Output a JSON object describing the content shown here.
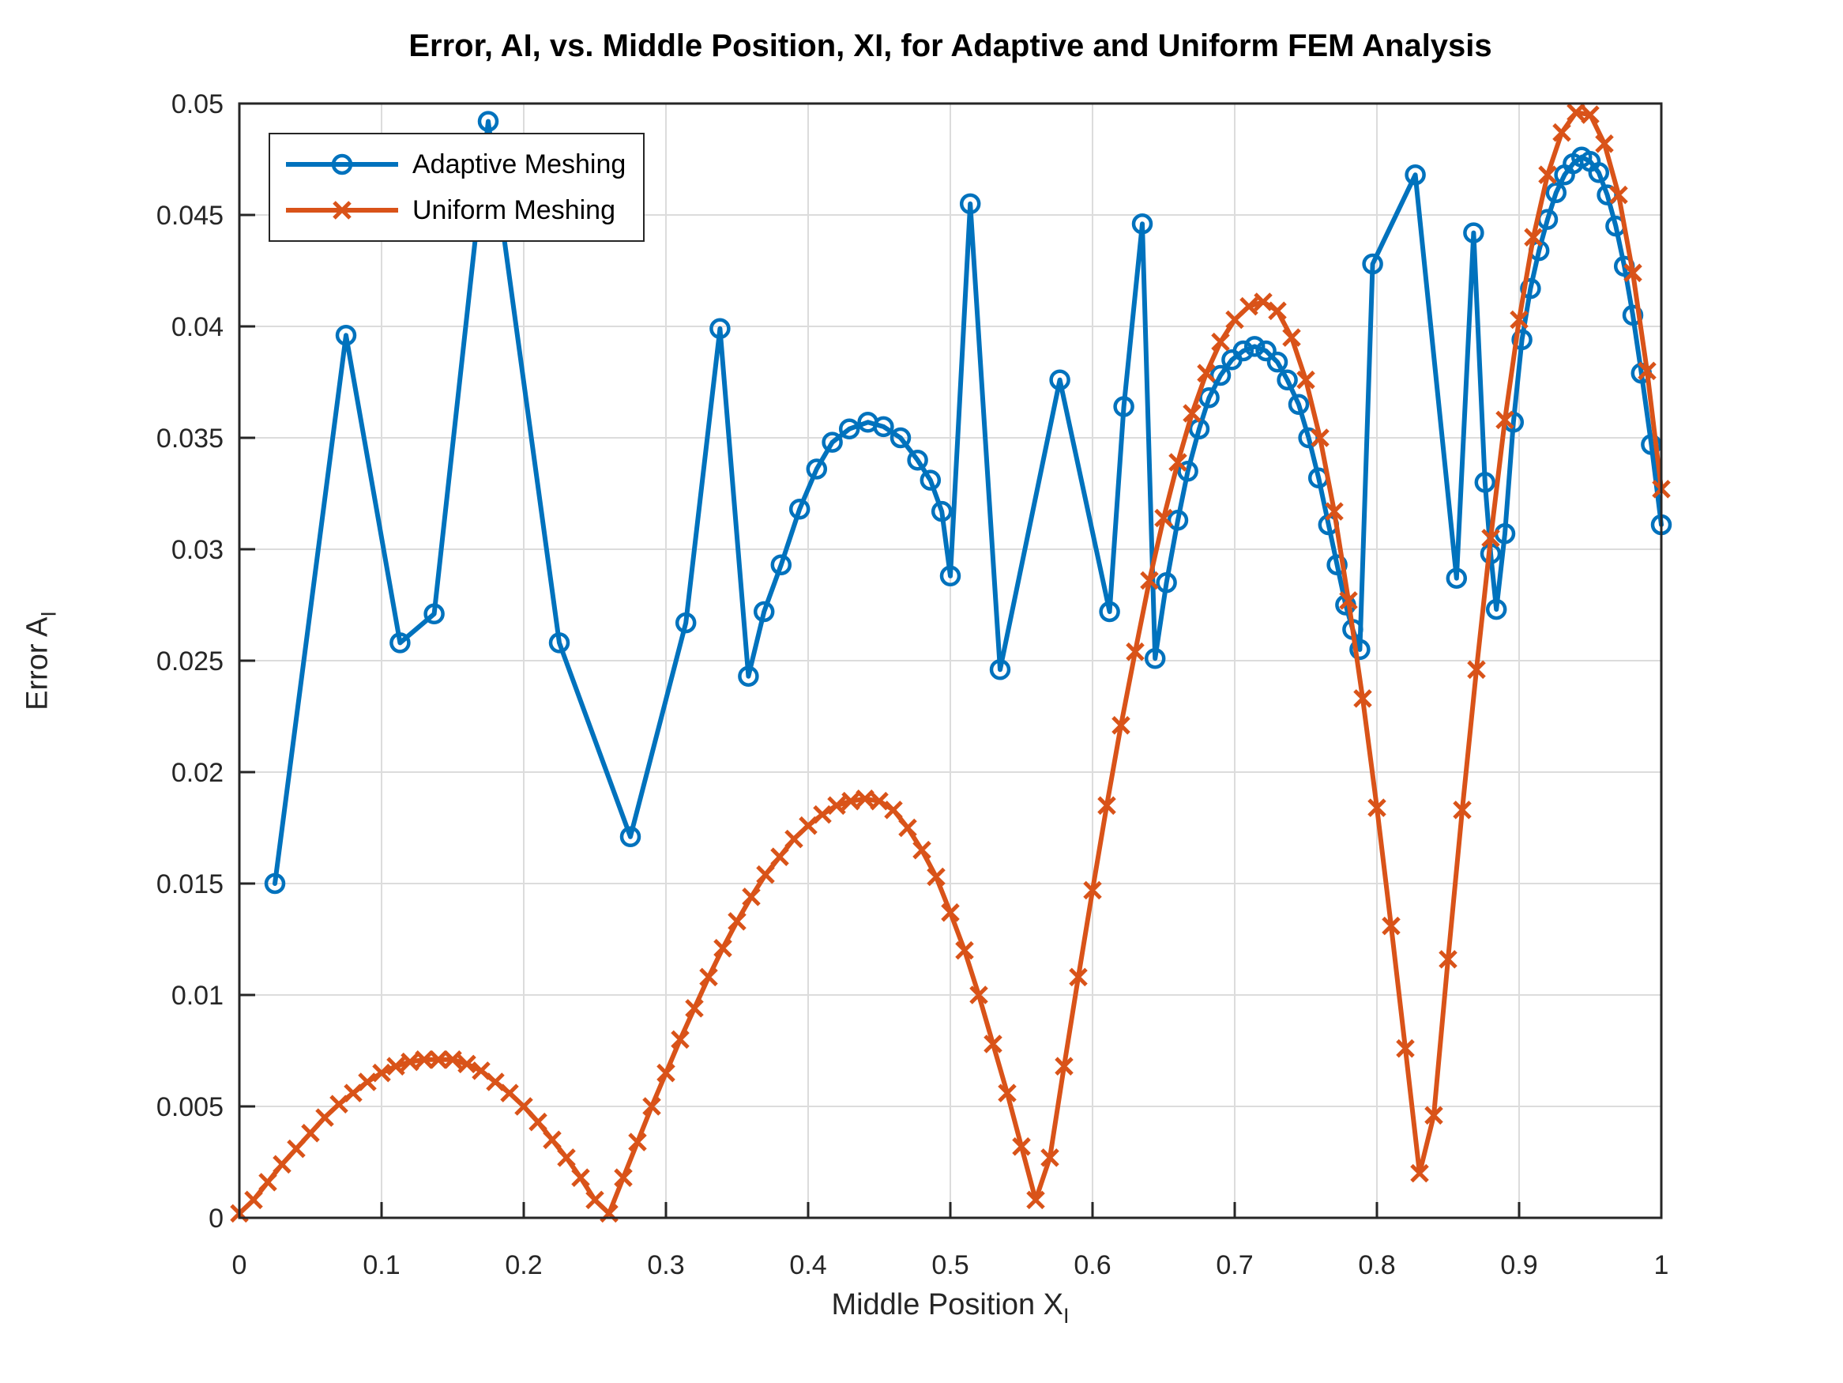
{
  "figure": {
    "title": "Error, AI, vs. Middle Position, XI, for Adaptive and Uniform FEM Analysis",
    "background": "#ffffff"
  },
  "axes": {
    "xlabel": {
      "text": "Middle Position X",
      "sub": "I"
    },
    "ylabel": {
      "text": "Error A",
      "sub": "I"
    },
    "xlim": [
      0,
      1
    ],
    "ylim": [
      0,
      0.05
    ],
    "x_ticks": [
      0,
      0.1,
      0.2,
      0.3,
      0.4,
      0.5,
      0.6,
      0.7,
      0.8,
      0.9,
      1
    ],
    "x_tick_labels": [
      "0",
      "0.1",
      "0.2",
      "0.3",
      "0.4",
      "0.5",
      "0.6",
      "0.7",
      "0.8",
      "0.9",
      "1"
    ],
    "y_ticks": [
      0,
      0.005,
      0.01,
      0.015,
      0.02,
      0.025,
      0.03,
      0.035,
      0.04,
      0.045,
      0.05
    ],
    "y_tick_labels": [
      "0",
      "0.005",
      "0.01",
      "0.015",
      "0.02",
      "0.025",
      "0.03",
      "0.035",
      "0.04",
      "0.045",
      "0.05"
    ],
    "grid": true,
    "box": true,
    "colors": {
      "grid": "#dcdcdc",
      "spine": "#262626",
      "tick_text": "#262626"
    }
  },
  "legend": {
    "position": "northwest",
    "items": [
      {
        "label": "Adaptive Meshing",
        "color": "#0072bd",
        "marker": "circle"
      },
      {
        "label": "Uniform Meshing",
        "color": "#d95319",
        "marker": "x"
      }
    ]
  },
  "chart_data": {
    "type": "line",
    "title": "Error, AI, vs. Middle Position, XI, for Adaptive and Uniform FEM Analysis",
    "xlabel": "Middle Position X_I",
    "ylabel": "Error A_I",
    "xlim": [
      0,
      1
    ],
    "ylim": [
      0,
      0.05
    ],
    "grid": true,
    "legend_position": "northwest",
    "series": [
      {
        "name": "Adaptive Meshing",
        "color": "#0072bd",
        "marker": "circle",
        "line_width": 6,
        "points": [
          [
            0.025,
            0.015
          ],
          [
            0.075,
            0.0396
          ],
          [
            0.113,
            0.0258
          ],
          [
            0.137,
            0.0271
          ],
          [
            0.175,
            0.0492
          ],
          [
            0.225,
            0.0258
          ],
          [
            0.275,
            0.0171
          ],
          [
            0.314,
            0.0267
          ],
          [
            0.338,
            0.0399
          ],
          [
            0.358,
            0.0243
          ],
          [
            0.369,
            0.0272
          ],
          [
            0.381,
            0.0293
          ],
          [
            0.394,
            0.0318
          ],
          [
            0.406,
            0.0336
          ],
          [
            0.417,
            0.0348
          ],
          [
            0.429,
            0.0354
          ],
          [
            0.442,
            0.0357
          ],
          [
            0.453,
            0.0355
          ],
          [
            0.465,
            0.035
          ],
          [
            0.477,
            0.034
          ],
          [
            0.486,
            0.0331
          ],
          [
            0.494,
            0.0317
          ],
          [
            0.5,
            0.0288
          ],
          [
            0.514,
            0.0455
          ],
          [
            0.535,
            0.0246
          ],
          [
            0.577,
            0.0376
          ],
          [
            0.612,
            0.0272
          ],
          [
            0.622,
            0.0364
          ],
          [
            0.635,
            0.0446
          ],
          [
            0.644,
            0.0251
          ],
          [
            0.652,
            0.0285
          ],
          [
            0.66,
            0.0313
          ],
          [
            0.667,
            0.0335
          ],
          [
            0.675,
            0.0354
          ],
          [
            0.682,
            0.0368
          ],
          [
            0.69,
            0.0378
          ],
          [
            0.698,
            0.0385
          ],
          [
            0.706,
            0.0389
          ],
          [
            0.714,
            0.0391
          ],
          [
            0.722,
            0.0389
          ],
          [
            0.73,
            0.0384
          ],
          [
            0.737,
            0.0376
          ],
          [
            0.745,
            0.0365
          ],
          [
            0.752,
            0.035
          ],
          [
            0.759,
            0.0332
          ],
          [
            0.766,
            0.0311
          ],
          [
            0.772,
            0.0293
          ],
          [
            0.778,
            0.0275
          ],
          [
            0.783,
            0.0264
          ],
          [
            0.788,
            0.0255
          ],
          [
            0.797,
            0.0428
          ],
          [
            0.827,
            0.0468
          ],
          [
            0.856,
            0.0287
          ],
          [
            0.868,
            0.0442
          ],
          [
            0.876,
            0.033
          ],
          [
            0.88,
            0.0298
          ],
          [
            0.884,
            0.0273
          ],
          [
            0.89,
            0.0307
          ],
          [
            0.896,
            0.0357
          ],
          [
            0.902,
            0.0394
          ],
          [
            0.908,
            0.0417
          ],
          [
            0.914,
            0.0434
          ],
          [
            0.92,
            0.0448
          ],
          [
            0.926,
            0.046
          ],
          [
            0.932,
            0.0468
          ],
          [
            0.938,
            0.0473
          ],
          [
            0.944,
            0.0476
          ],
          [
            0.95,
            0.0474
          ],
          [
            0.956,
            0.0469
          ],
          [
            0.962,
            0.0459
          ],
          [
            0.968,
            0.0445
          ],
          [
            0.974,
            0.0427
          ],
          [
            0.98,
            0.0405
          ],
          [
            0.986,
            0.0379
          ],
          [
            0.993,
            0.0347
          ],
          [
            1.0,
            0.0311
          ]
        ]
      },
      {
        "name": "Uniform Meshing",
        "color": "#d95319",
        "marker": "x",
        "line_width": 6,
        "x0": 0,
        "dx": 0.01,
        "y": [
          0.0002,
          0.0008,
          0.0016,
          0.0024,
          0.0031,
          0.0038,
          0.0045,
          0.0051,
          0.0056,
          0.0061,
          0.0065,
          0.0068,
          0.007,
          0.0071,
          0.0071,
          0.0071,
          0.0069,
          0.0066,
          0.0061,
          0.0056,
          0.005,
          0.0043,
          0.0035,
          0.0027,
          0.0018,
          0.0008,
          0.0002,
          0.0018,
          0.0034,
          0.005,
          0.0065,
          0.008,
          0.0094,
          0.0108,
          0.0121,
          0.0133,
          0.0144,
          0.0154,
          0.0162,
          0.017,
          0.0176,
          0.0181,
          0.0185,
          0.0187,
          0.0188,
          0.0187,
          0.0183,
          0.0175,
          0.0165,
          0.0153,
          0.0137,
          0.012,
          0.01,
          0.0078,
          0.0056,
          0.0032,
          0.0008,
          0.0027,
          0.0068,
          0.0108,
          0.0147,
          0.0185,
          0.0221,
          0.0254,
          0.0286,
          0.0314,
          0.0339,
          0.0361,
          0.0379,
          0.0393,
          0.0403,
          0.0409,
          0.0411,
          0.0407,
          0.0395,
          0.0376,
          0.035,
          0.0317,
          0.0277,
          0.0233,
          0.0184,
          0.0131,
          0.0076,
          0.002,
          0.0046,
          0.0116,
          0.0183,
          0.0246,
          0.0305,
          0.0358,
          0.0403,
          0.044,
          0.0468,
          0.0487,
          0.0496,
          0.0495,
          0.0482,
          0.0459,
          0.0424,
          0.038,
          0.0327
        ]
      }
    ]
  }
}
